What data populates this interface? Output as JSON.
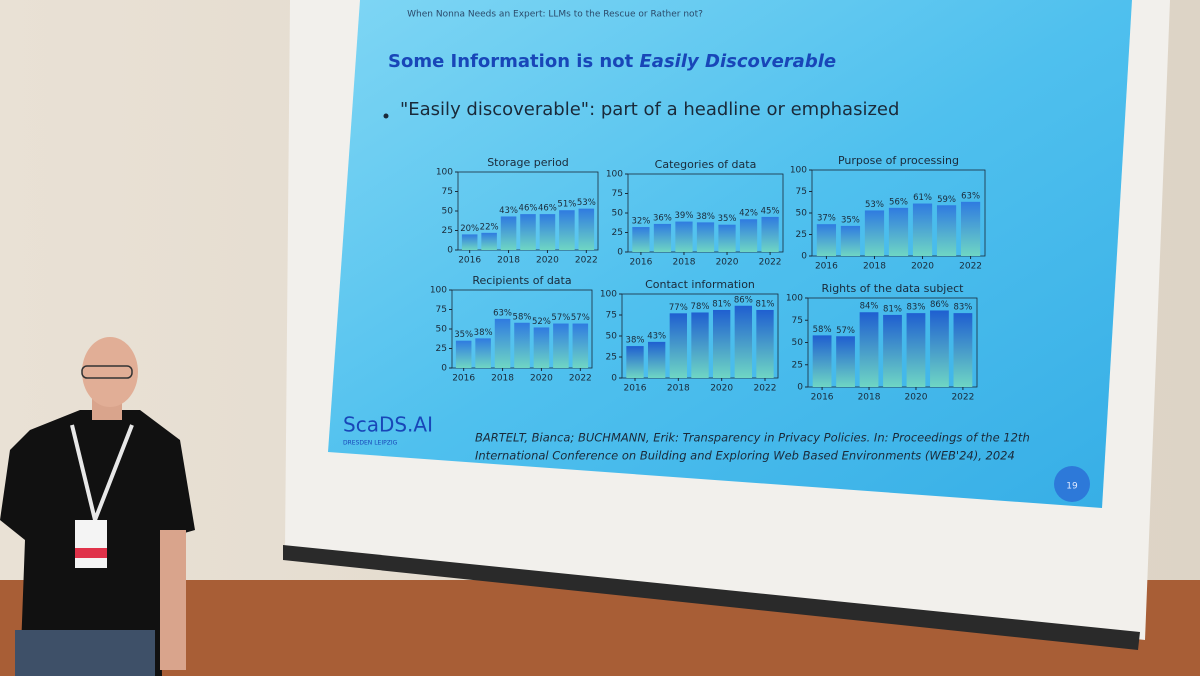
{
  "slide": {
    "header": "When Nonna Needs an Expert: LLMs to the Rescue or Rather not?",
    "title_plain": "Some Information is not",
    "title_italic": "Easily Discoverable",
    "bullet": "\"Easily discoverable\": part of a headline or emphasized",
    "citation": [
      "BARTELT, Bianca; BUCHMANN, Erik: Transparency in Privacy Policies. In: Proceedings of the 12th",
      "International Conference on Building and Exploring Web Based Environments (WEB'24), 2024"
    ],
    "logo": "ScaDS.AI",
    "logo_sub": "DRESDEN LEIPZIG",
    "page_number": "19"
  },
  "chart_data": [
    {
      "type": "bar",
      "title": "Storage period",
      "x": [
        2016,
        2017,
        2018,
        2019,
        2020,
        2021,
        2022
      ],
      "values": [
        20,
        22,
        43,
        46,
        46,
        51,
        53
      ],
      "value_labels": [
        "20%",
        "22%",
        "43%",
        "46%",
        "46%",
        "51%",
        "53%"
      ],
      "color": "#2f7be0",
      "xlim": [
        2015.4,
        2022.6
      ],
      "xticks": [
        2016,
        2018,
        2020,
        2022
      ],
      "ylim": [
        0,
        100
      ],
      "yticks": [
        0,
        25,
        50,
        75,
        100
      ]
    },
    {
      "type": "bar",
      "title": "Categories of data",
      "x": [
        2016,
        2017,
        2018,
        2019,
        2020,
        2021,
        2022
      ],
      "values": [
        32,
        36,
        39,
        38,
        35,
        42,
        45
      ],
      "value_labels": [
        "32%",
        "36%",
        "39%",
        "38%",
        "35%",
        "42%",
        "45%"
      ],
      "color": "#2f7be0",
      "xlim": [
        2015.4,
        2022.6
      ],
      "xticks": [
        2016,
        2018,
        2020,
        2022
      ],
      "ylim": [
        0,
        100
      ],
      "yticks": [
        0,
        25,
        50,
        75,
        100
      ]
    },
    {
      "type": "bar",
      "title": "Purpose of processing",
      "x": [
        2016,
        2017,
        2018,
        2019,
        2020,
        2021,
        2022
      ],
      "values": [
        37,
        35,
        53,
        56,
        61,
        59,
        63
      ],
      "value_labels": [
        "37%",
        "35%",
        "53%",
        "56%",
        "61%",
        "59%",
        "63%"
      ],
      "color": "#2f7be0",
      "xlim": [
        2015.4,
        2022.6
      ],
      "xticks": [
        2016,
        2018,
        2020,
        2022
      ],
      "ylim": [
        0,
        100
      ],
      "yticks": [
        0,
        25,
        50,
        75,
        100
      ]
    },
    {
      "type": "bar",
      "title": "Recipients of data",
      "x": [
        2016,
        2017,
        2018,
        2019,
        2020,
        2021,
        2022
      ],
      "values": [
        35,
        38,
        63,
        58,
        52,
        57,
        57
      ],
      "value_labels": [
        "35%",
        "38%",
        "63%",
        "58%",
        "52%",
        "57%",
        "57%"
      ],
      "color": "#2f7be0",
      "xlim": [
        2015.4,
        2022.6
      ],
      "xticks": [
        2016,
        2018,
        2020,
        2022
      ],
      "ylim": [
        0,
        100
      ],
      "yticks": [
        0,
        25,
        50,
        75,
        100
      ]
    },
    {
      "type": "bar",
      "title": "Contact information",
      "x": [
        2016,
        2017,
        2018,
        2019,
        2020,
        2021,
        2022
      ],
      "values": [
        38,
        43,
        77,
        78,
        81,
        86,
        81
      ],
      "value_labels": [
        "38%",
        "43%",
        "77%",
        "78%",
        "81%",
        "86%",
        "81%"
      ],
      "color": "#1f5fd0",
      "xlim": [
        2015.4,
        2022.6
      ],
      "xticks": [
        2016,
        2018,
        2020,
        2022
      ],
      "ylim": [
        0,
        100
      ],
      "yticks": [
        0,
        25,
        50,
        75,
        100
      ]
    },
    {
      "type": "bar",
      "title": "Rights of the data subject",
      "x": [
        2016,
        2017,
        2018,
        2019,
        2020,
        2021,
        2022
      ],
      "values": [
        58,
        57,
        84,
        81,
        83,
        86,
        83
      ],
      "value_labels": [
        "58%",
        "57%",
        "84%",
        "81%",
        "83%",
        "86%",
        "83%"
      ],
      "color": "#1f5fd0",
      "xlim": [
        2015.4,
        2022.6
      ],
      "xticks": [
        2016,
        2018,
        2020,
        2022
      ],
      "ylim": [
        0,
        100
      ],
      "yticks": [
        0,
        25,
        50,
        75,
        100
      ]
    }
  ]
}
